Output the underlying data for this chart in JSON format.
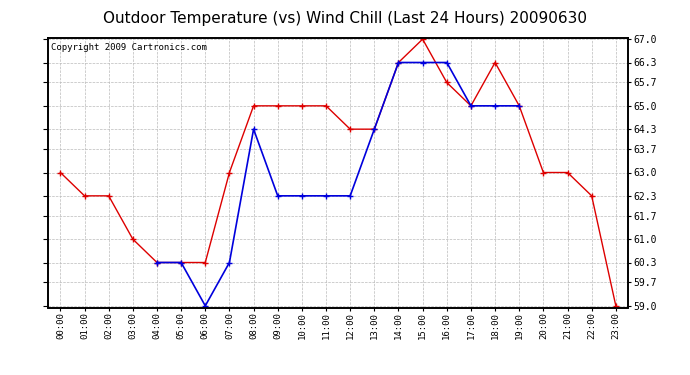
{
  "title": "Outdoor Temperature (vs) Wind Chill (Last 24 Hours) 20090630",
  "copyright": "Copyright 2009 Cartronics.com",
  "hours": [
    "00:00",
    "01:00",
    "02:00",
    "03:00",
    "04:00",
    "05:00",
    "06:00",
    "07:00",
    "08:00",
    "09:00",
    "10:00",
    "11:00",
    "12:00",
    "13:00",
    "14:00",
    "15:00",
    "16:00",
    "17:00",
    "18:00",
    "19:00",
    "20:00",
    "21:00",
    "22:00",
    "23:00"
  ],
  "red_temp": [
    63.0,
    62.3,
    62.3,
    61.0,
    60.3,
    60.3,
    60.3,
    63.0,
    65.0,
    65.0,
    65.0,
    65.0,
    64.3,
    64.3,
    66.3,
    67.0,
    65.7,
    65.0,
    66.3,
    65.0,
    63.0,
    63.0,
    62.3,
    59.0
  ],
  "blue_wc": [
    null,
    null,
    null,
    null,
    60.3,
    60.3,
    59.0,
    60.3,
    64.3,
    62.3,
    62.3,
    62.3,
    62.3,
    64.3,
    66.3,
    66.3,
    66.3,
    65.0,
    65.0,
    65.0,
    null,
    null,
    null,
    null
  ],
  "ylim_min": 59.0,
  "ylim_max": 67.0,
  "yticks": [
    59.0,
    59.7,
    60.3,
    61.0,
    61.7,
    62.3,
    63.0,
    63.7,
    64.3,
    65.0,
    65.7,
    66.3,
    67.0
  ],
  "red_color": "#dd0000",
  "blue_color": "#0000dd",
  "bg_color": "#ffffff",
  "grid_color": "#bbbbbb",
  "title_fontsize": 11,
  "copyright_fontsize": 6.5
}
